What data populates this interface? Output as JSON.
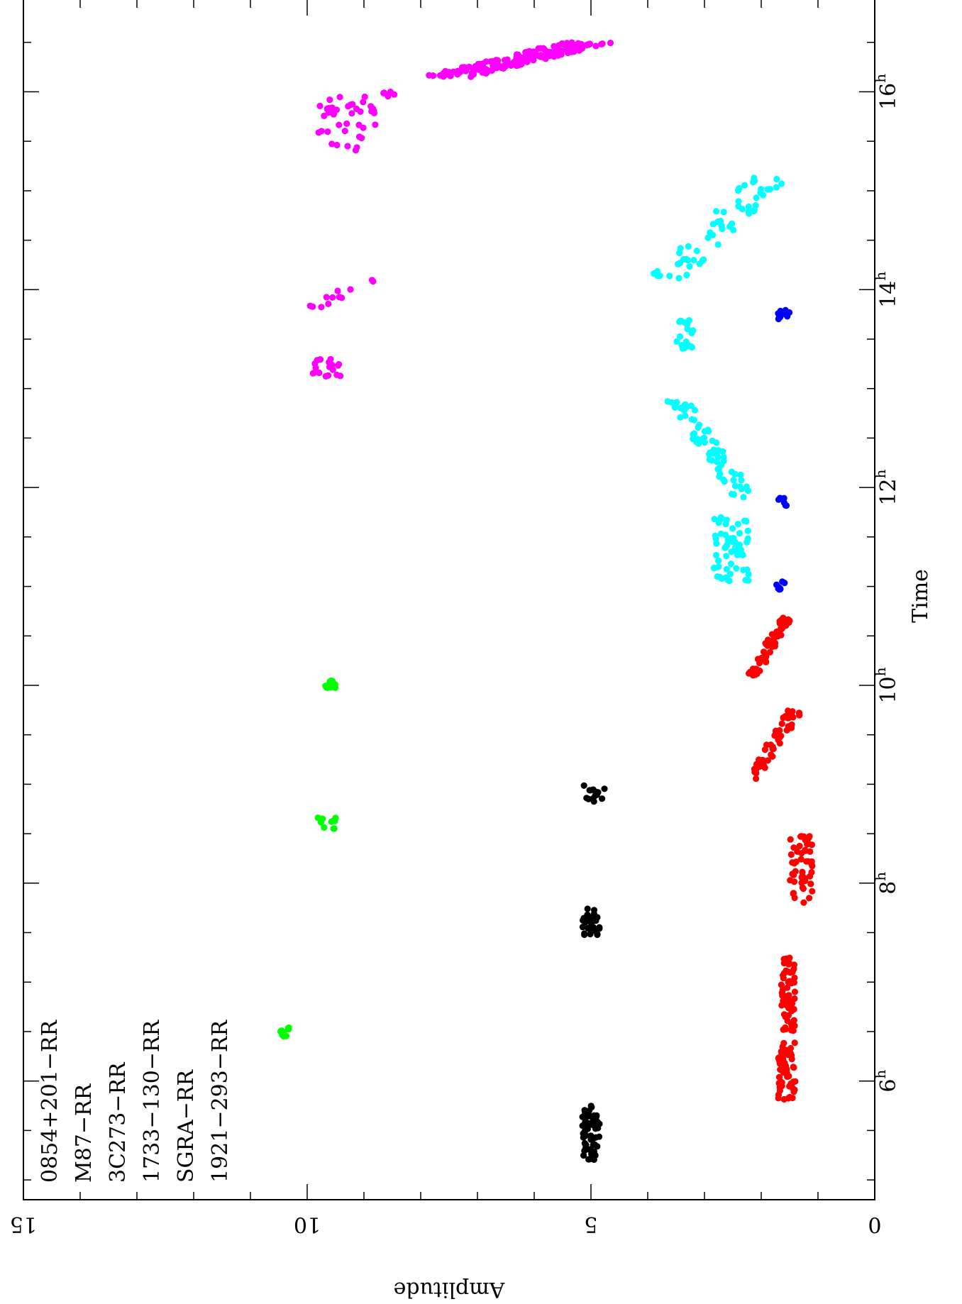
{
  "chart_data": {
    "type": "scatter",
    "xlabel": "Time",
    "ylabel": "Amplitude",
    "xlim": [
      4.8,
      17.0
    ],
    "ylim": [
      0,
      15
    ],
    "x_ticks": [
      {
        "value": 6,
        "label": "6",
        "sup": "h"
      },
      {
        "value": 8,
        "label": "8",
        "sup": "h"
      },
      {
        "value": 10,
        "label": "10",
        "sup": "h"
      },
      {
        "value": 12,
        "label": "12",
        "sup": "h"
      },
      {
        "value": 14,
        "label": "14",
        "sup": "h"
      },
      {
        "value": 16,
        "label": "16",
        "sup": "h"
      }
    ],
    "y_ticks": [
      {
        "value": 0,
        "label": "0"
      },
      {
        "value": 5,
        "label": "5"
      },
      {
        "value": 10,
        "label": "10"
      },
      {
        "value": 15,
        "label": "15"
      }
    ],
    "legend_position": "bottom-left",
    "series": [
      {
        "name": "0854+201−RR",
        "color": "#000000",
        "clusters": [
          {
            "x": [
              5.2,
              5.75
            ],
            "y": [
              4.85,
              5.15
            ],
            "n": 60
          },
          {
            "x": [
              7.45,
              7.75
            ],
            "y": [
              4.85,
              5.15
            ],
            "n": 30
          },
          {
            "x": [
              8.8,
              9.0
            ],
            "y": [
              4.75,
              5.15
            ],
            "n": 15
          }
        ]
      },
      {
        "name": "M87−RR",
        "color": "#ff0000",
        "clusters": [
          {
            "x": [
              5.8,
              6.4
            ],
            "y": [
              1.4,
              1.7
            ],
            "n": 55
          },
          {
            "x": [
              6.5,
              7.25
            ],
            "y": [
              1.4,
              1.65
            ],
            "n": 55
          },
          {
            "x": [
              7.8,
              8.5
            ],
            "y": [
              1.1,
              1.5
            ],
            "n": 50
          },
          {
            "x": [
              9.05,
              9.75
            ],
            "y": [
              1.4,
              2.15
            ],
            "n": 55,
            "trend": "descending"
          },
          {
            "x": [
              10.1,
              10.7
            ],
            "y": [
              1.55,
              2.15
            ],
            "n": 55,
            "trend": "descending"
          }
        ]
      },
      {
        "name": "3C273−RR",
        "color": "#00ff00",
        "clusters": [
          {
            "x": [
              6.45,
              6.55
            ],
            "y": [
              10.3,
              10.5
            ],
            "n": 10
          },
          {
            "x": [
              8.55,
              8.7
            ],
            "y": [
              9.5,
              9.85
            ],
            "n": 10
          },
          {
            "x": [
              9.97,
              10.05
            ],
            "y": [
              9.5,
              9.7
            ],
            "n": 15
          }
        ]
      },
      {
        "name": "1733−130−RR",
        "color": "#0000ff",
        "clusters": [
          {
            "x": [
              10.95,
              11.05
            ],
            "y": [
              1.55,
              1.75
            ],
            "n": 8
          },
          {
            "x": [
              11.8,
              11.9
            ],
            "y": [
              1.55,
              1.7
            ],
            "n": 6
          },
          {
            "x": [
              13.7,
              13.8
            ],
            "y": [
              1.5,
              1.75
            ],
            "n": 10
          }
        ]
      },
      {
        "name": "SGRA−RR",
        "color": "#00ffff",
        "clusters": [
          {
            "x": [
              11.05,
              11.7
            ],
            "y": [
              2.2,
              2.85
            ],
            "n": 60
          },
          {
            "x": [
              11.9,
              12.9
            ],
            "y": [
              2.3,
              3.5
            ],
            "n": 70,
            "trend": "ascending"
          },
          {
            "x": [
              13.4,
              13.7
            ],
            "y": [
              3.2,
              3.5
            ],
            "n": 20
          },
          {
            "x": [
              14.1,
              15.2
            ],
            "y": [
              1.75,
              3.7
            ],
            "n": 60,
            "trend": "descending"
          }
        ]
      },
      {
        "name": "1921−293−RR",
        "color": "#ff00ff",
        "clusters": [
          {
            "x": [
              13.1,
              13.3
            ],
            "y": [
              9.4,
              9.9
            ],
            "n": 20
          },
          {
            "x": [
              13.8,
              14.1
            ],
            "y": [
              8.9,
              9.95
            ],
            "n": 12,
            "trend": "descending"
          },
          {
            "x": [
              15.4,
              15.95
            ],
            "y": [
              8.8,
              9.9
            ],
            "n": 40
          },
          {
            "x": [
              15.95,
              16.0
            ],
            "y": [
              8.45,
              8.7
            ],
            "n": 5
          },
          {
            "x": [
              16.15,
              16.5
            ],
            "y": [
              5.05,
              7.55
            ],
            "n": 170,
            "trend": "descending"
          }
        ]
      }
    ]
  }
}
